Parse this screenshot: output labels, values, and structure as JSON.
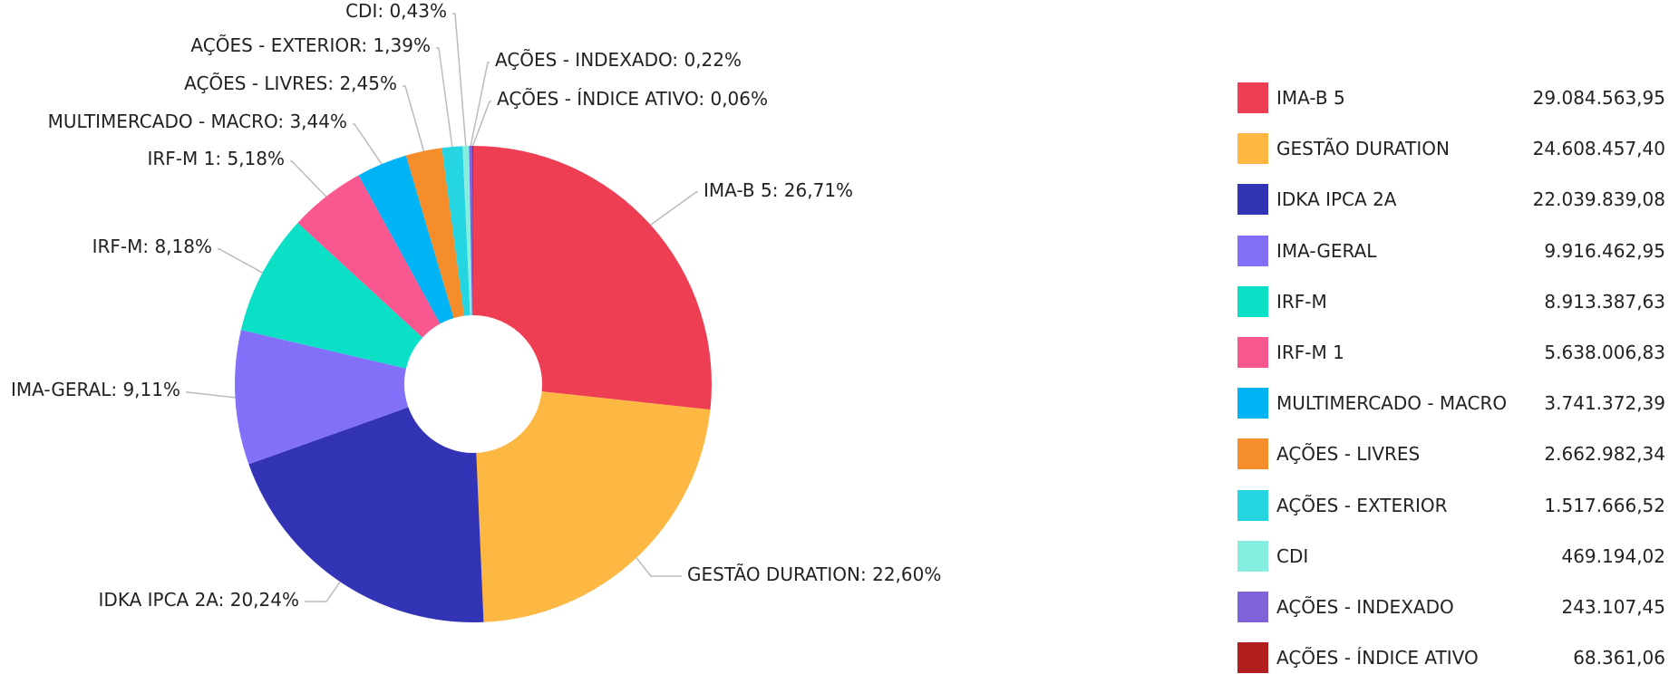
{
  "chart_data": {
    "type": "pie",
    "variant": "donut",
    "categories": [
      "IMA-B 5",
      "GESTÃO DURATION",
      "IDKA IPCA 2A",
      "IMA-GERAL",
      "IRF-M",
      "IRF-M 1",
      "MULTIMERCADO - MACRO",
      "AÇÕES - LIVRES",
      "AÇÕES - EXTERIOR",
      "CDI",
      "AÇÕES - INDEXADO",
      "AÇÕES - ÍNDICE ATIVO"
    ],
    "values": [
      26.71,
      22.6,
      20.24,
      9.11,
      8.18,
      5.18,
      3.44,
      2.45,
      1.39,
      0.43,
      0.22,
      0.06
    ],
    "slice_labels": [
      "IMA-B 5: 26,71%",
      "GESTÃO DURATION: 22,60%",
      "IDKA IPCA 2A: 20,24%",
      "IMA-GERAL: 9,11%",
      "IRF-M: 8,18%",
      "IRF-M 1: 5,18%",
      "MULTIMERCADO - MACRO: 3,44%",
      "AÇÕES - LIVRES: 2,45%",
      "AÇÕES - EXTERIOR: 1,39%",
      "CDI: 0,43%",
      "AÇÕES - INDEXADO: 0,22%",
      "AÇÕES - ÍNDICE ATIVO: 0,06%"
    ],
    "legend_values": [
      "29.084.563,95",
      "24.608.457,40",
      "22.039.839,08",
      "9.916.462,95",
      "8.913.387,63",
      "5.638.006,83",
      "3.741.372,39",
      "2.662.982,34",
      "1.517.666,52",
      "469.194,02",
      "243.107,45",
      "68.361,06"
    ],
    "colors": [
      "#ee3e54",
      "#fdb844",
      "#3333b5",
      "#8270f9",
      "#0be0c6",
      "#f8588f",
      "#00b3f4",
      "#f58d2b",
      "#26d5e2",
      "#86eedf",
      "#7f63d8",
      "#b21d1d"
    ],
    "legend_position": "right"
  }
}
